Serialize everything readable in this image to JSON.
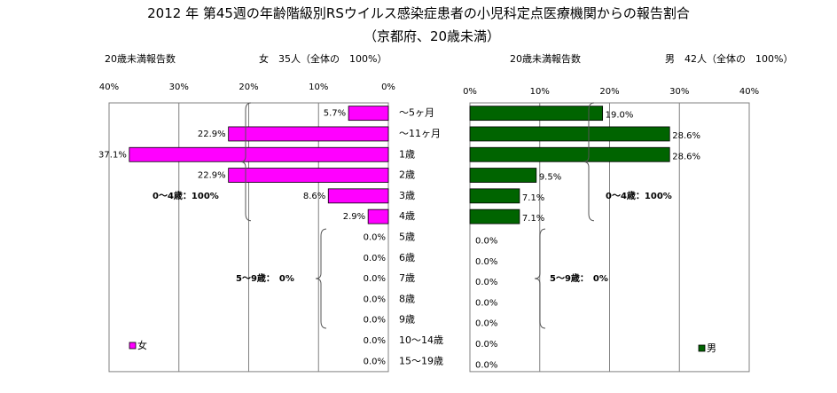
{
  "title": "2012 年 第45週の年齢階級別RSウイルス感染症患者の小児科定点医療機関からの報告割合",
  "subtitle": "（京都府、20歳未満）",
  "ages": [
    "～5ヶ月",
    "～11ヶ月",
    "1歳",
    "2歳",
    "3歳",
    "4歳",
    "5歳",
    "6歳",
    "7歳",
    "8歳",
    "9歳",
    "10～14歳",
    "15～19歳"
  ],
  "colors": {
    "female": "#ff00ff",
    "male": "#006400",
    "grid": "#808080"
  },
  "chart_data": [
    {
      "type": "bar",
      "orientation": "horizontal",
      "direction": "leftward",
      "header_label": "20歳未満報告数",
      "header_info": "女　35人（全体の　100%）",
      "series": [
        {
          "name": "女",
          "values": [
            5.7,
            22.9,
            37.1,
            22.9,
            8.6,
            2.9,
            0.0,
            0.0,
            0.0,
            0.0,
            0.0,
            0.0,
            0.0
          ]
        }
      ],
      "data_labels": [
        "5.7%",
        "22.9%",
        "37.1%",
        "22.9%",
        "8.6%",
        "2.9%",
        "0.0%",
        "0.0%",
        "0.0%",
        "0.0%",
        "0.0%",
        "0.0%",
        "0.0%"
      ],
      "xticks": [
        "40%",
        "30%",
        "20%",
        "10%",
        "0%"
      ],
      "xlim": [
        0,
        40
      ],
      "grid": true,
      "legend_position": "bottom-left",
      "annotations": [
        "0～4歳：100%",
        "5～9歳：　0%"
      ]
    },
    {
      "type": "bar",
      "orientation": "horizontal",
      "direction": "rightward",
      "header_label": "20歳未満報告数",
      "header_info": "男　42人（全体の　100%）",
      "series": [
        {
          "name": "男",
          "values": [
            19.0,
            28.6,
            28.6,
            9.5,
            7.1,
            7.1,
            0.0,
            0.0,
            0.0,
            0.0,
            0.0,
            0.0,
            0.0
          ]
        }
      ],
      "data_labels": [
        "19.0%",
        "28.6%",
        "28.6%",
        "9.5%",
        "7.1%",
        "7.1%",
        "0.0%",
        "0.0%",
        "0.0%",
        "0.0%",
        "0.0%",
        "0.0%",
        "0.0%"
      ],
      "xticks": [
        "0%",
        "10%",
        "20%",
        "30%",
        "40%"
      ],
      "xlim": [
        0,
        40
      ],
      "grid": true,
      "legend_position": "bottom-right",
      "annotations": [
        "0～4歳：100%",
        "5～9歳：　0%"
      ]
    }
  ]
}
